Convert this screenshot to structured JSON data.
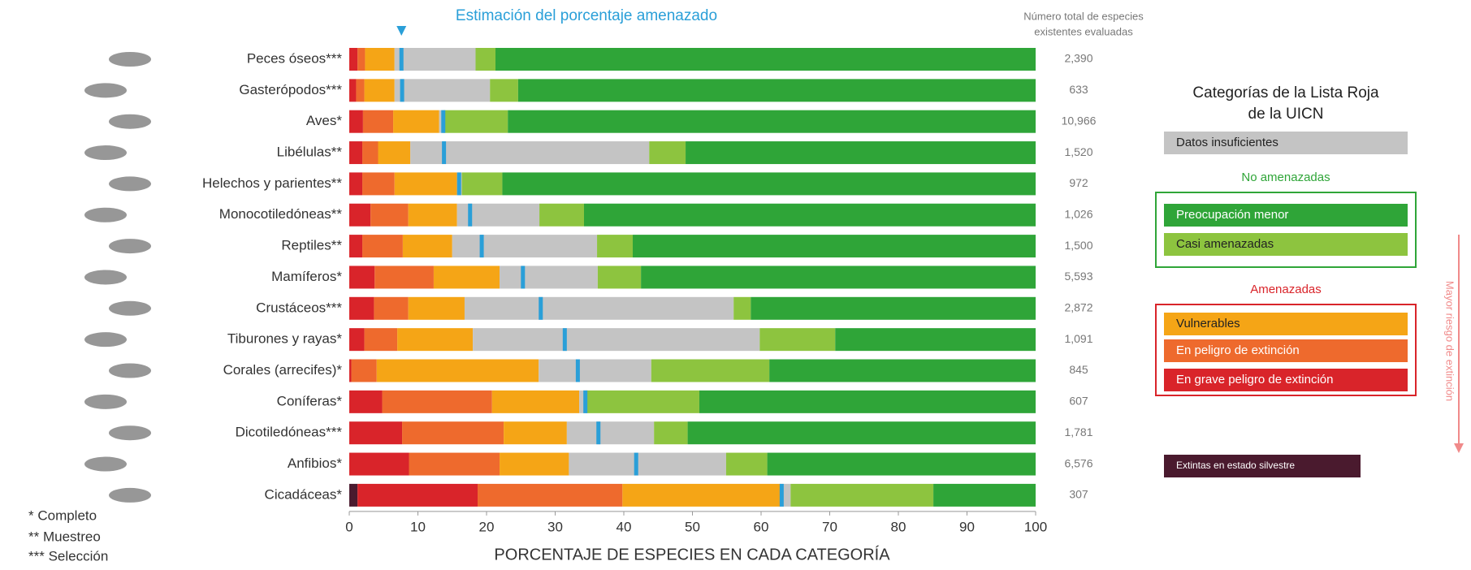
{
  "chart_data": {
    "type": "stacked-bar-horizontal",
    "x_label": "PORCENTAJE DE ESPECIES EN CADA CATEGORÍA",
    "xlim": [
      0,
      100
    ],
    "xticks": [
      0,
      10,
      20,
      30,
      40,
      50,
      60,
      70,
      80,
      90,
      100
    ],
    "categories": [
      "Peces óseos***",
      "Gasterópodos***",
      "Aves*",
      "Libélulas**",
      "Helechos y parientes**",
      "Monocotiledóneas**",
      "Reptiles**",
      "Mamíferos*",
      "Crustáceos***",
      "Tiburones y rayas*",
      "Corales (arrecifes)*",
      "Coníferas*",
      "Dicotiledóneas***",
      "Anfibios*",
      "Cicadáceas*"
    ],
    "series": [
      {
        "name": "Extintas en estado silvestre",
        "color": "#4a1a2e",
        "values": [
          0,
          0,
          0,
          0,
          0,
          0,
          0,
          0,
          0,
          0,
          0,
          0,
          0,
          0,
          1.2
        ]
      },
      {
        "name": "En grave peligro de extinción",
        "color": "#d9242a",
        "values": [
          1.2,
          1.0,
          2.0,
          1.9,
          1.9,
          3.1,
          1.9,
          3.7,
          3.6,
          2.2,
          0.3,
          4.8,
          7.7,
          8.7,
          17.5
        ]
      },
      {
        "name": "En peligro de extinción",
        "color": "#ee6a2d",
        "values": [
          1.1,
          1.2,
          4.4,
          2.3,
          4.7,
          5.5,
          5.9,
          8.6,
          5.0,
          4.8,
          3.7,
          16.0,
          14.8,
          13.2,
          21.1
        ]
      },
      {
        "name": "Vulnerables",
        "color": "#f5a516",
        "values": [
          4.3,
          4.4,
          6.7,
          4.7,
          9.1,
          7.1,
          7.2,
          9.6,
          8.2,
          11.0,
          23.6,
          12.7,
          9.2,
          10.1,
          23.0
        ]
      },
      {
        "name": "Datos insuficientes",
        "color": "#c4c4c4",
        "values": [
          11.8,
          13.9,
          0.6,
          34.8,
          0.7,
          12.0,
          21.1,
          14.3,
          39.2,
          41.8,
          16.4,
          1.1,
          12.7,
          22.9,
          1.5
        ]
      },
      {
        "name": "Casi amenazadas",
        "color": "#8dc43f",
        "values": [
          2.9,
          4.1,
          9.4,
          5.3,
          5.9,
          6.5,
          5.2,
          6.3,
          2.5,
          11.0,
          17.2,
          16.4,
          4.9,
          6.0,
          20.8
        ]
      },
      {
        "name": "Preocupación menor",
        "color": "#2fa538",
        "values": [
          78.7,
          75.4,
          76.9,
          51.0,
          77.7,
          65.8,
          58.7,
          57.5,
          41.5,
          29.2,
          38.8,
          49.0,
          50.7,
          39.1,
          14.9
        ]
      }
    ],
    "estimate": {
      "name": "Estimación del porcentaje amenazado",
      "color": "#2a9fd8",
      "values": [
        7.6,
        7.7,
        13.7,
        13.8,
        16.0,
        17.6,
        19.3,
        25.3,
        27.9,
        31.4,
        33.3,
        34.4,
        36.3,
        41.8,
        63.0
      ]
    },
    "totals_title": [
      "Número total de especies",
      "existentes evaluadas"
    ],
    "totals": [
      {
        "value": 2390,
        "label": "2,390"
      },
      {
        "value": 633,
        "label": "633"
      },
      {
        "value": 10966,
        "label": "10,966"
      },
      {
        "value": 1520,
        "label": "1,520"
      },
      {
        "value": 972,
        "label": "972"
      },
      {
        "value": 1026,
        "label": "1,026"
      },
      {
        "value": 1500,
        "label": "1,500"
      },
      {
        "value": 5593,
        "label": "5,593"
      },
      {
        "value": 2872,
        "label": "2,872"
      },
      {
        "value": 1091,
        "label": "1,091"
      },
      {
        "value": 845,
        "label": "845"
      },
      {
        "value": 607,
        "label": "607"
      },
      {
        "value": 1781,
        "label": "1,781"
      },
      {
        "value": 6576,
        "label": "6,576"
      },
      {
        "value": 307,
        "label": "307"
      }
    ],
    "legend_title": [
      "Categorías de la Lista Roja",
      "de la UICN"
    ],
    "legend_groups": [
      "No amenazadas",
      "Amenazadas"
    ],
    "risk_arrow": "Mayor riesgo de extinción",
    "notes": [
      "* Completo",
      "** Muestreo",
      "*** Selección"
    ]
  }
}
